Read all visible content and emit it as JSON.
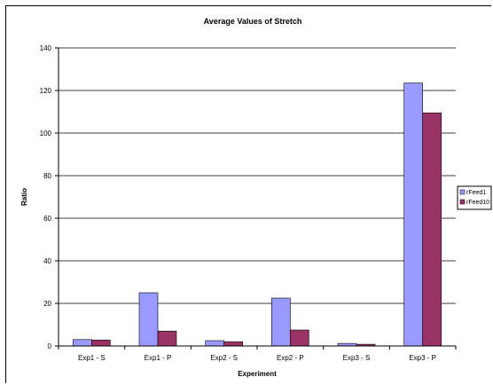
{
  "chart_data": {
    "type": "bar",
    "title": "Average Values of Stretch",
    "xlabel": "Experiment",
    "ylabel": "Ratio",
    "ylim": [
      0,
      140
    ],
    "yticks": [
      0,
      20,
      40,
      60,
      80,
      100,
      120,
      140
    ],
    "grid": true,
    "legend_position": "right",
    "categories": [
      "Exp1 - S",
      "Exp1 - P",
      "Exp2 - S",
      "Exp2 - P",
      "Exp3 - S",
      "Exp3 - P"
    ],
    "series": [
      {
        "name": "rFeed1",
        "color": "#9999ff",
        "values": [
          3,
          25,
          2.5,
          22.5,
          1.2,
          123.5
        ]
      },
      {
        "name": "rFeed10",
        "color": "#993366",
        "values": [
          2.8,
          7,
          2,
          7.5,
          0.8,
          109.5
        ]
      }
    ]
  }
}
